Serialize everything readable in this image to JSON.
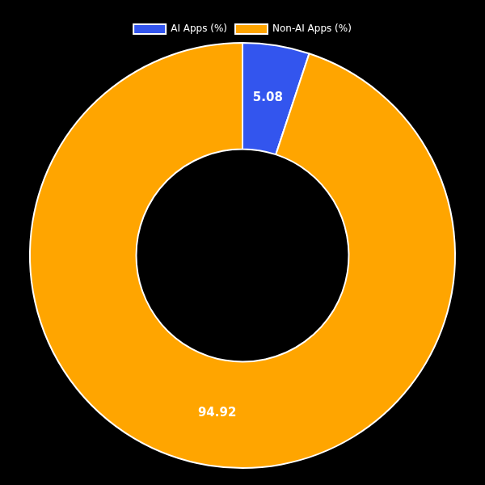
{
  "chart_data": {
    "type": "doughnut",
    "categories": [
      "AI Apps (%)",
      "Non-AI Apps (%)"
    ],
    "values": [
      5.08,
      94.92
    ],
    "colors": [
      "#3355ee",
      "#FFA500"
    ],
    "data_labels": true,
    "legend": "top"
  }
}
